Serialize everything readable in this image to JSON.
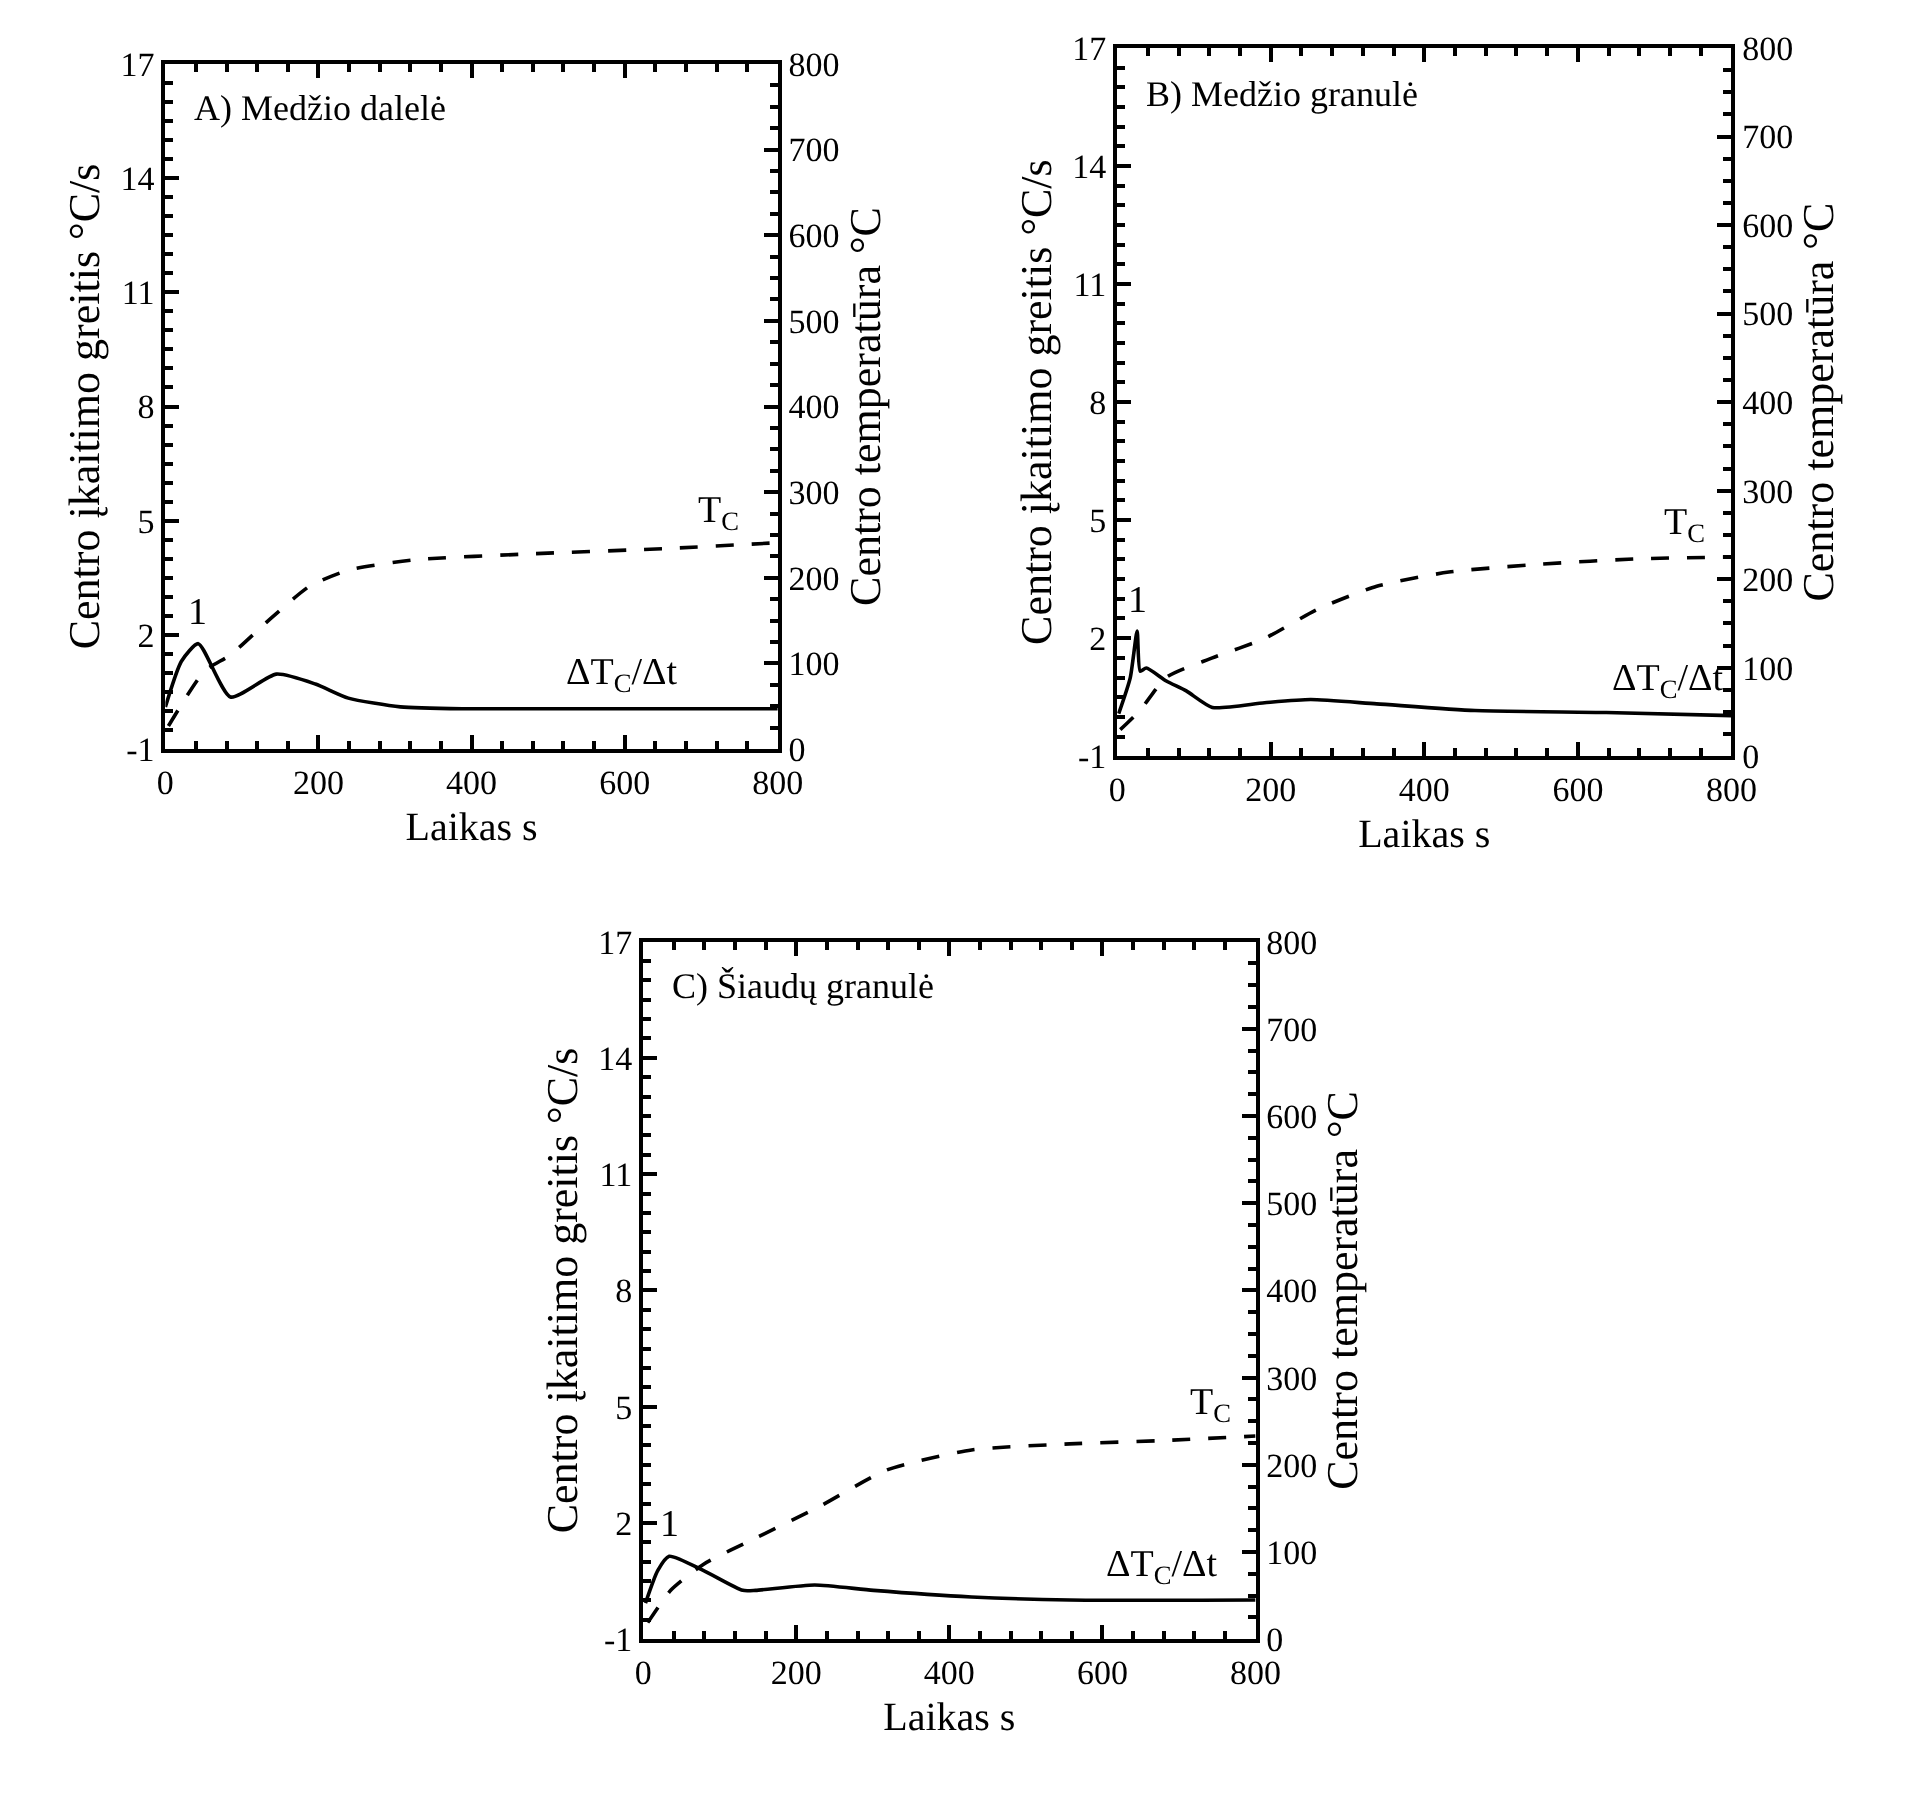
{
  "chart_data": [
    {
      "type": "line",
      "title": "A) Medžio dalelė",
      "xlabel": "Laikas s",
      "ylabel": "Centro įkaitimo greitis °C/s",
      "y2label": "Centro temperatūra °C",
      "xlim": [
        0,
        800
      ],
      "xticks": [
        0,
        200,
        400,
        600,
        800
      ],
      "ylim": [
        -1,
        17
      ],
      "yticks": [
        -1,
        2,
        5,
        8,
        11,
        14,
        17
      ],
      "y2lim": [
        0,
        800
      ],
      "y2ticks": [
        0,
        100,
        200,
        300,
        400,
        500,
        600,
        700,
        800
      ],
      "grid": false,
      "marker": "none",
      "series": [
        {
          "color": "#000000",
          "line_style": "solid",
          "x": [
            0,
            21,
            43,
            85,
            145,
            196,
            239,
            307,
            393,
            800
          ],
          "values": [
            0.11,
            1.31,
            1.77,
            0.37,
            0.97,
            0.71,
            0.34,
            0.11,
            0.06,
            0.06
          ]
        },
        {
          "color": "#000000",
          "line_style": "dashed",
          "axis": "y2",
          "x": [
            4,
            51,
            85,
            137,
            188,
            239,
            325,
            478,
            649,
            800
          ],
          "values": [
            27,
            91,
            110,
            152,
            190,
            209,
            221,
            228,
            234,
            241
          ]
        }
      ],
      "annotations": [
        "1",
        "T$_{C}$",
        "ΔT$_{C}$/Δt"
      ]
    },
    {
      "type": "line",
      "title": "B) Medžio granulė",
      "xlabel": "Laikas s",
      "ylabel": "Centro įkaitimo greitis °C/s",
      "y2label": "Centro temperatūra °C",
      "xlim": [
        0,
        800
      ],
      "xticks": [
        0,
        200,
        400,
        600,
        800
      ],
      "ylim": [
        -1,
        17
      ],
      "yticks": [
        -1,
        2,
        5,
        8,
        11,
        14,
        17
      ],
      "y2lim": [
        0,
        800
      ],
      "y2ticks": [
        0,
        100,
        200,
        300,
        400,
        500,
        600,
        700,
        800
      ],
      "grid": false,
      "marker": "none",
      "series": [
        {
          "color": "#000000",
          "line_style": "solid",
          "x": [
            2,
            17,
            26,
            30,
            38,
            64,
            90,
            124,
            192,
            252,
            338,
            466,
            637,
            800
          ],
          "values": [
            0.08,
            0.99,
            2.18,
            1.16,
            1.24,
            0.91,
            0.66,
            0.24,
            0.36,
            0.44,
            0.33,
            0.16,
            0.11,
            0.03
          ]
        },
        {
          "color": "#000000",
          "line_style": "dashed",
          "axis": "y2",
          "x": [
            4,
            30,
            64,
            124,
            192,
            261,
            338,
            432,
            552,
            680,
            800
          ],
          "values": [
            30,
            52,
            89,
            111,
            133,
            166,
            192,
            208,
            217,
            223,
            225
          ]
        }
      ],
      "annotations": [
        "1",
        "T$_{C}$",
        "ΔT$_{C}$/Δt"
      ]
    },
    {
      "type": "line",
      "title": "C) Šiaudų granulė",
      "xlabel": "Laikas s",
      "ylabel": "Centro įkaitimo greitis °C/s",
      "y2label": "Centro temperatūra °C",
      "xlim": [
        0,
        800
      ],
      "xticks": [
        0,
        200,
        400,
        600,
        800
      ],
      "ylim": [
        -1,
        17
      ],
      "yticks": [
        -1,
        2,
        5,
        8,
        11,
        14,
        17
      ],
      "y2lim": [
        0,
        800
      ],
      "y2ticks": [
        0,
        100,
        200,
        300,
        400,
        500,
        600,
        700,
        800
      ],
      "grid": false,
      "marker": "none",
      "series": [
        {
          "color": "#000000",
          "line_style": "solid",
          "x": [
            3,
            19,
            34,
            79,
            130,
            147,
            224,
            301,
            429,
            557,
            800
          ],
          "values": [
            -0.07,
            0.77,
            1.14,
            0.77,
            0.26,
            0.26,
            0.4,
            0.26,
            0.09,
            0.01,
            0.01
          ]
        },
        {
          "color": "#000000",
          "line_style": "dashed",
          "axis": "y2",
          "x": [
            6,
            36,
            79,
            147,
            232,
            318,
            429,
            557,
            685,
            800
          ],
          "values": [
            19,
            56,
            86,
            116,
            153,
            194,
            217,
            224,
            228,
            233
          ]
        }
      ],
      "annotations": [
        "1",
        "T$_{C}$",
        "ΔT$_{C}$/Δt"
      ]
    }
  ]
}
